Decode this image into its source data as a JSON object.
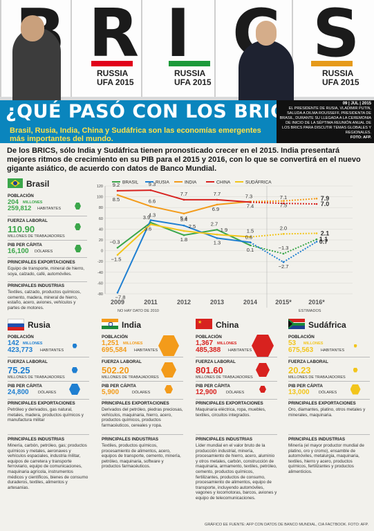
{
  "hero": {
    "letters": [
      "B",
      "R",
      "I",
      "C",
      "S"
    ],
    "russia": "RUSSIA",
    "ufa": "UFA 2015"
  },
  "title": "¿QUÉ PASÓ CON LOS BRICS?",
  "subtitle": "Brasil, Rusia, India, China y Sudáfrica son las economías emergentes más importantes del mundo.",
  "caption": {
    "date": "09 | JUL | 2015",
    "text": "EL PRESIDENTE DE RUSIA, VLADIMIR PUTIN, SALUDA A DILMA ROUSSEFF, PRESIDENTA DE BRASIL, DURANTE SU LLEGADA A LA CEREMONIA DE INICIO DE LA SÉPTIMA REUNIÓN ANUAL DE LOS BRICS PARA DISCUTIR TEMAS GLOBALES Y REGIONALES.",
    "photo": "FOTO: AFP."
  },
  "intro": "De los BRICS, sólo India y Sudáfrica tienen pronosticado crecer en el 2015. India presentará mejores ritmos de crecimiento en su PIB para el 2015 y 2016, con lo que se convertirá en el nuevo gigante asiático, de acuerdo con datos de Banco Mundial.",
  "labels": {
    "poblacion": "POBLACIÓN",
    "millones": "MILLONES",
    "habitantes": "HABITANTES",
    "fuerza": "FUERZA LABORAL",
    "trabajadores": "MILLONES DE TRABAJADORES",
    "pib": "PIB PER CÁPITA",
    "dolares": "DÓLARES",
    "export": "PRINCIPALES EXPORTACIONES",
    "industrias": "PRINCIPALES INDUSTRIAS"
  },
  "brasil": {
    "name": "Brasil",
    "pop_mill": "204",
    "pop_hab": "259,812",
    "fuerza": "110.90",
    "pib": "16,100",
    "export": "Equipo de transporte, mineral de hierro, soya, calzado, café, automóviles.",
    "industrias": "Textiles, calzado, productos químicos, cemento, madera, mineral de hierro, estaño, acero, aviones, vehículos y partes de motores."
  },
  "rusia": {
    "name": "Rusia",
    "pop_mill": "142",
    "pop_hab": "423,773",
    "fuerza": "75.25",
    "pib": "24,800",
    "export": "Petróleo y derivados, gas natural, metales, madera, productos químicos y manufactura militar",
    "industrias": "Minería, carbón, petróleo, gas; productos químicos y metales, aeronaves y vehículos espaciales, industria militar, equipos de carretera y transporte ferroviario, equipo de comunicaciones, maquinaria agrícola, instrumentos médicos y científicos, bienes de consumo duraderos, textiles, alimentos y artesanías."
  },
  "india": {
    "name": "India",
    "pop_mill": "1,251",
    "pop_hab": "695,584",
    "fuerza": "502.20",
    "pib": "5,900",
    "export": "Derivados del petróleo, piedras preciosas, vehículos, maquinaria, hierro, acero, productos químicos, productos farmacéuticos, cereales y ropa.",
    "industrias": "Textiles, productos químicos, procesamiento de alimentos, acero, equipos de transporte, cemento, minería, petróleo, maquinaria, software y productos farmacéuticos."
  },
  "china": {
    "name": "China",
    "pop_mill": "1,367",
    "pop_hab": "485,388",
    "fuerza": "801.60",
    "pib": "12,900",
    "export": "Maquinaria eléctrica, ropa, muebles, textiles, circuitos integrados.",
    "industrias": "Líder mundial en el valor bruto de la producción industrial, minería, procesamiento de hierro, acero, aluminio y otros metales, carbón, construcción de maquinaria, armamento, textiles, petróleo, cemento, productos químicos, fertilizantes, productos de consumo, procesamiento de alimentos, equipo de transporte, incluyendo automóviles, vagones y locomotoras, barcos, aviones y equipo de telecomunicaciones."
  },
  "sudafrica": {
    "name": "Sudáfrica",
    "pop_mill": "53",
    "pop_hab": "675,563",
    "fuerza": "20.23",
    "pib": "13,000",
    "export": "Oro, diamantes, platino, otros metales y minerales, maquinaria.",
    "industrias": "Minería (el mayor productor mundial de platino, oro y cromo), ensamble de automóviles, metalurgia, maquinaria, textiles, hierro y acero, productos químicos, fertilizantes y productos alimenticios."
  },
  "colors": {
    "brasil": "#3ba64a",
    "rusia": "#1f7fd1",
    "india": "#f39b1a",
    "china": "#d8221f",
    "sudafrica": "#f2c51c"
  },
  "chart_data": {
    "type": "line",
    "x": [
      "2009",
      "2011",
      "2012",
      "2013",
      "2014",
      "2015*",
      "2016*"
    ],
    "ylim": [
      -80,
      120
    ],
    "yticks": [
      -80,
      -60,
      -40,
      -20,
      0,
      20,
      40,
      60,
      80,
      100,
      120
    ],
    "note_left": "NO HAY DATO DE 2010",
    "note_right": "ESTIMADOS",
    "series": [
      {
        "name": "BRASIL",
        "values": [
          -0.3,
          3.9,
          1.8,
          2.7,
          0.1,
          -1.3,
          1.1
        ],
        "labels": [
          "−0.3",
          "3.9",
          "1.8",
          "2.7",
          "0.1",
          "−1.3",
          "1.1"
        ]
      },
      {
        "name": "RUSIA",
        "values": [
          -7.8,
          4.3,
          3.4,
          1.3,
          0.6,
          -2.7,
          0.7
        ],
        "labels": [
          "−7.8",
          "4.3",
          "3.4",
          "1.3",
          "0.6",
          "−2.7",
          "0.7"
        ]
      },
      {
        "name": "INDIA",
        "values": [
          8.5,
          6.6,
          5.4,
          6.9,
          7.4,
          7.5,
          7.9
        ],
        "labels": [
          "8.5",
          "6.6",
          "5.4",
          "6.9",
          "7.4",
          "7.5",
          "7.9"
        ]
      },
      {
        "name": "CHINA",
        "values": [
          9.2,
          9.3,
          7.7,
          7.7,
          7.3,
          7.1,
          7.0
        ],
        "labels": [
          "9.2",
          "9.3",
          "7.7",
          "7.7",
          "7.3",
          "7.1",
          "7.0"
        ]
      },
      {
        "name": "SUDÁFRICA",
        "values": [
          -1.5,
          3.6,
          2.5,
          1.9,
          1.5,
          2.0,
          2.1
        ],
        "labels": [
          "−1.5",
          "3.6",
          "2.5",
          "1.9",
          "1.5",
          "2.0",
          "2.1"
        ]
      }
    ]
  },
  "footer": "GRÁFICO EE FUENTE: AFP CON DATOS DE BANCO MUNDIAL, CIA FACTBOOK. FOTO: AFP."
}
